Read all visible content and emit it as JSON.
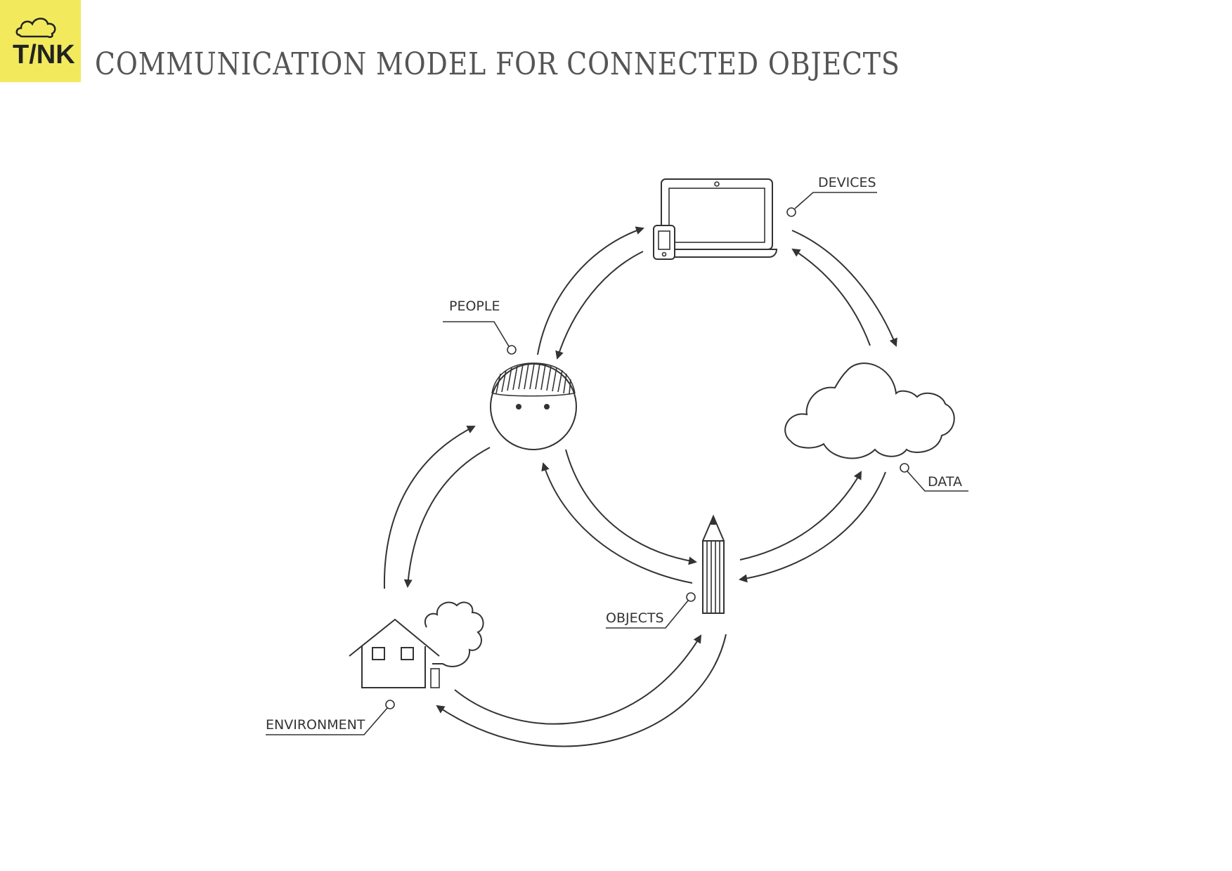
{
  "header": {
    "title": "COMMUNICATION MODEL FOR CONNECTED OBJECTS",
    "logo_text": "T/NK",
    "logo_color": "#f2ea5c"
  },
  "diagram": {
    "nodes": [
      {
        "id": "devices",
        "label": "DEVICES",
        "icon": "laptop-phone-icon"
      },
      {
        "id": "people",
        "label": "PEOPLE",
        "icon": "face-icon"
      },
      {
        "id": "data",
        "label": "DATA",
        "icon": "cloud-icon"
      },
      {
        "id": "objects",
        "label": "OBJECTS",
        "icon": "pencil-icon"
      },
      {
        "id": "environment",
        "label": "ENVIRONMENT",
        "icon": "house-tree-icon"
      }
    ],
    "connections": [
      {
        "from": "people",
        "to": "devices",
        "bidirectional": true
      },
      {
        "from": "devices",
        "to": "data",
        "bidirectional": true
      },
      {
        "from": "data",
        "to": "objects",
        "bidirectional": true
      },
      {
        "from": "people",
        "to": "objects",
        "bidirectional": true
      },
      {
        "from": "people",
        "to": "environment",
        "bidirectional": true
      },
      {
        "from": "objects",
        "to": "environment",
        "bidirectional": true
      }
    ],
    "line_color": "#333333"
  }
}
